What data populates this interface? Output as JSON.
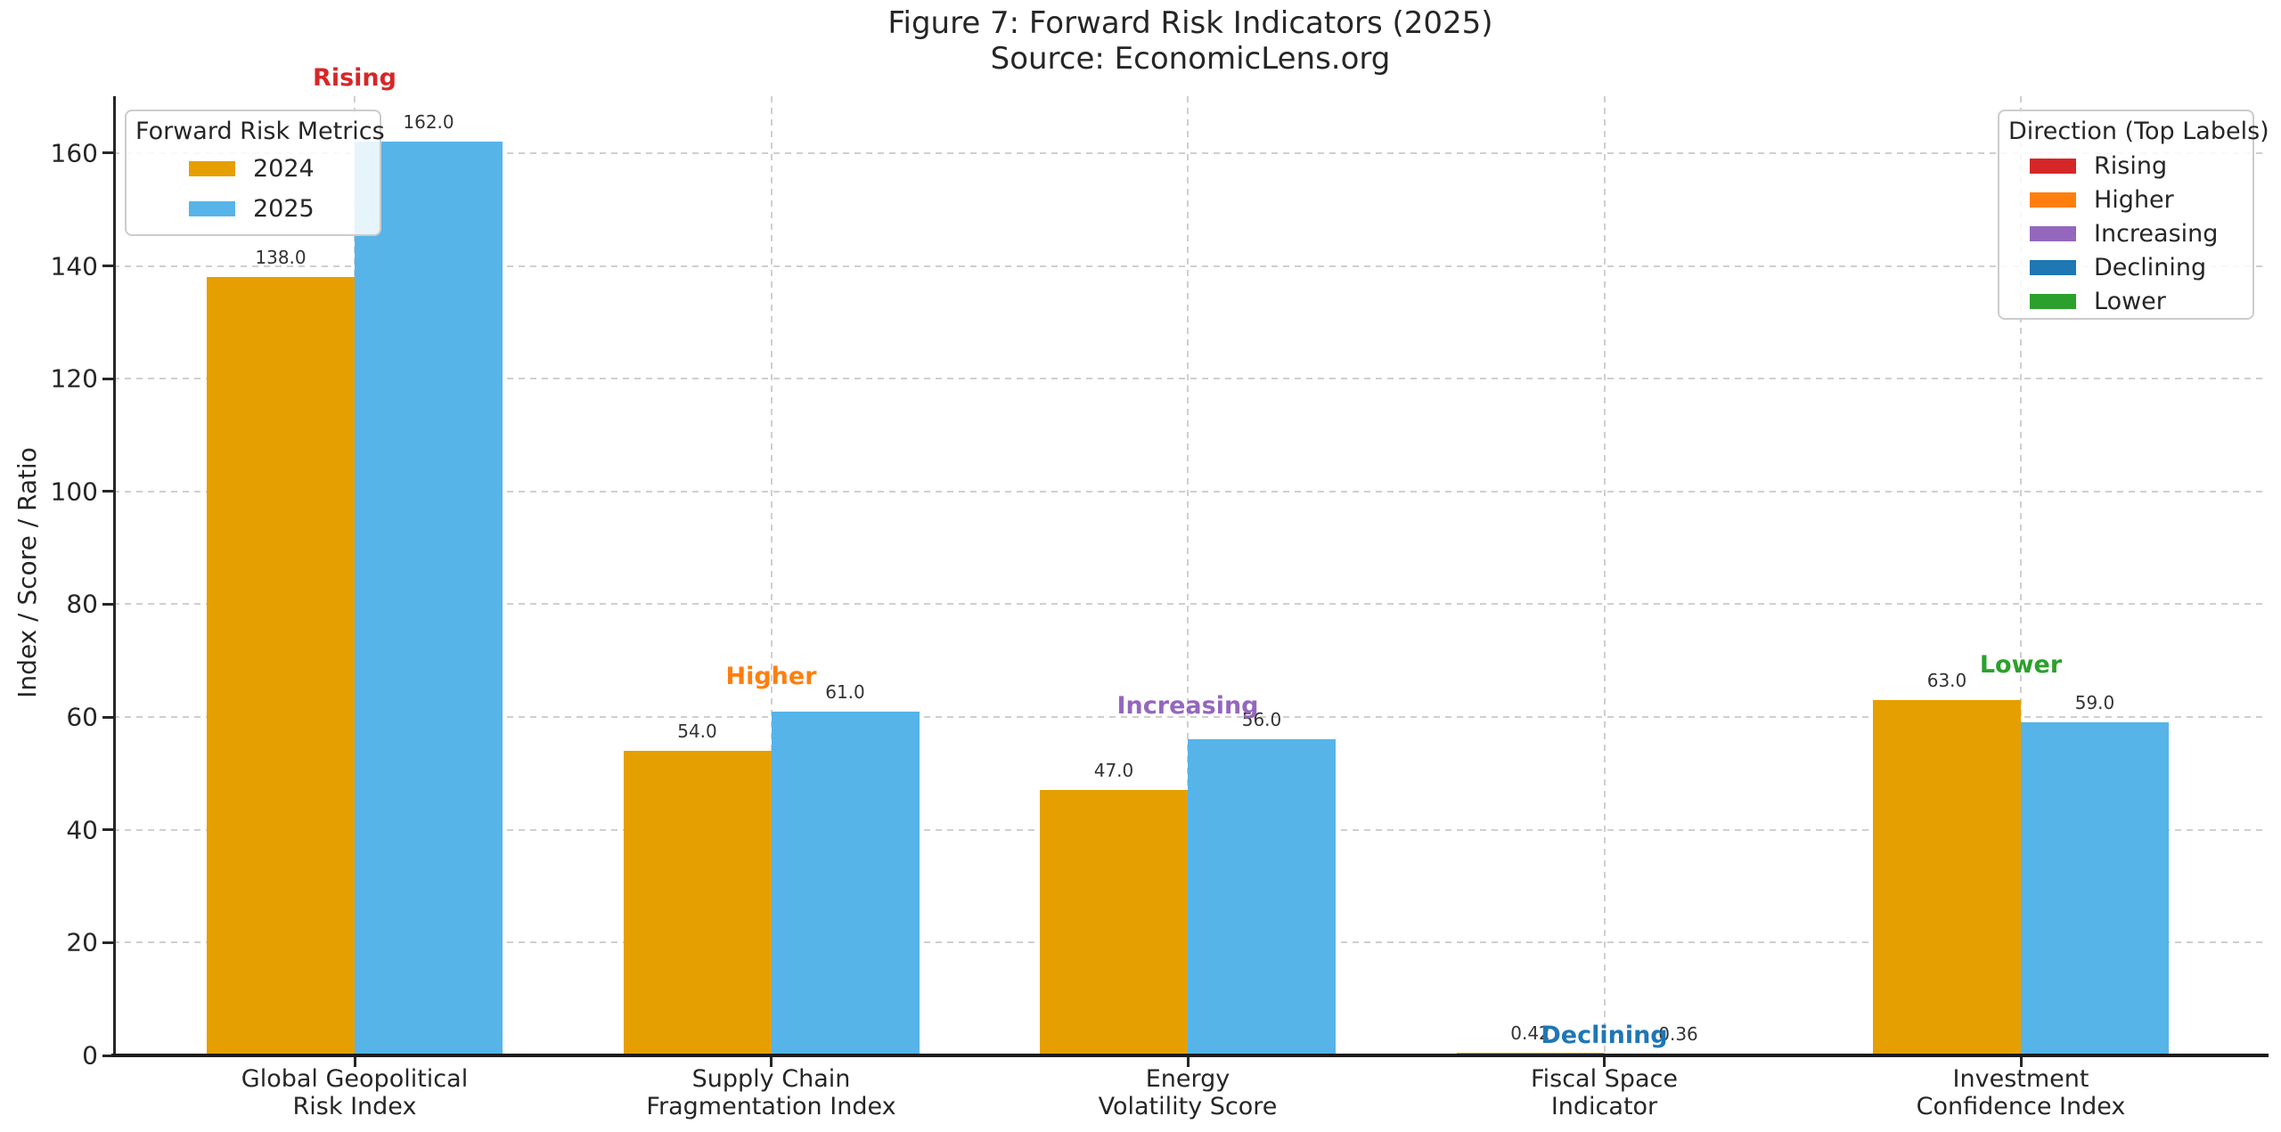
{
  "chart_data": {
    "type": "bar",
    "title": "Figure 7: Forward Risk Indicators (2025)",
    "subtitle": "Source: EconomicLens.org",
    "xlabel": "",
    "ylabel": "Index / Score / Ratio",
    "ylim": [
      0,
      170.1
    ],
    "yticks": [
      0,
      20,
      40,
      60,
      80,
      100,
      120,
      140,
      160
    ],
    "grid": true,
    "categories": [
      {
        "line1": "Global Geopolitical",
        "line2": "Risk Index"
      },
      {
        "line1": "Supply Chain",
        "line2": "Fragmentation Index"
      },
      {
        "line1": "Energy",
        "line2": "Volatility Score"
      },
      {
        "line1": "Fiscal Space",
        "line2": "Indicator"
      },
      {
        "line1": "Investment",
        "line2": "Confidence Index"
      }
    ],
    "series": [
      {
        "name": "2024",
        "color": "#E69F00",
        "values": [
          138,
          54,
          47,
          0.42,
          63
        ],
        "display": [
          "138.0",
          "54.0",
          "47.0",
          "0.42",
          "63.0"
        ]
      },
      {
        "name": "2025",
        "color": "#56B4E9",
        "values": [
          162,
          61,
          56,
          0.36,
          59
        ],
        "display": [
          "162.0",
          "61.0",
          "56.0",
          "0.36",
          "59.0"
        ]
      }
    ],
    "directions": [
      {
        "label": "Rising",
        "color": "#d62728"
      },
      {
        "label": "Higher",
        "color": "#ff7f0e"
      },
      {
        "label": "Increasing",
        "color": "#9467bd"
      },
      {
        "label": "Declining",
        "color": "#1f77b4"
      },
      {
        "label": "Lower",
        "color": "#2ca02c"
      }
    ]
  },
  "legend_metrics": {
    "title": "Forward Risk Metrics",
    "items": [
      {
        "label": "2024",
        "color": "#E69F00"
      },
      {
        "label": "2025",
        "color": "#56B4E9"
      }
    ]
  },
  "legend_direction": {
    "title": "Direction (Top Labels)",
    "items": [
      {
        "label": "Rising",
        "color": "#d62728"
      },
      {
        "label": "Higher",
        "color": "#ff7f0e"
      },
      {
        "label": "Increasing",
        "color": "#9467bd"
      },
      {
        "label": "Declining",
        "color": "#1f77b4"
      },
      {
        "label": "Lower",
        "color": "#2ca02c"
      }
    ]
  }
}
